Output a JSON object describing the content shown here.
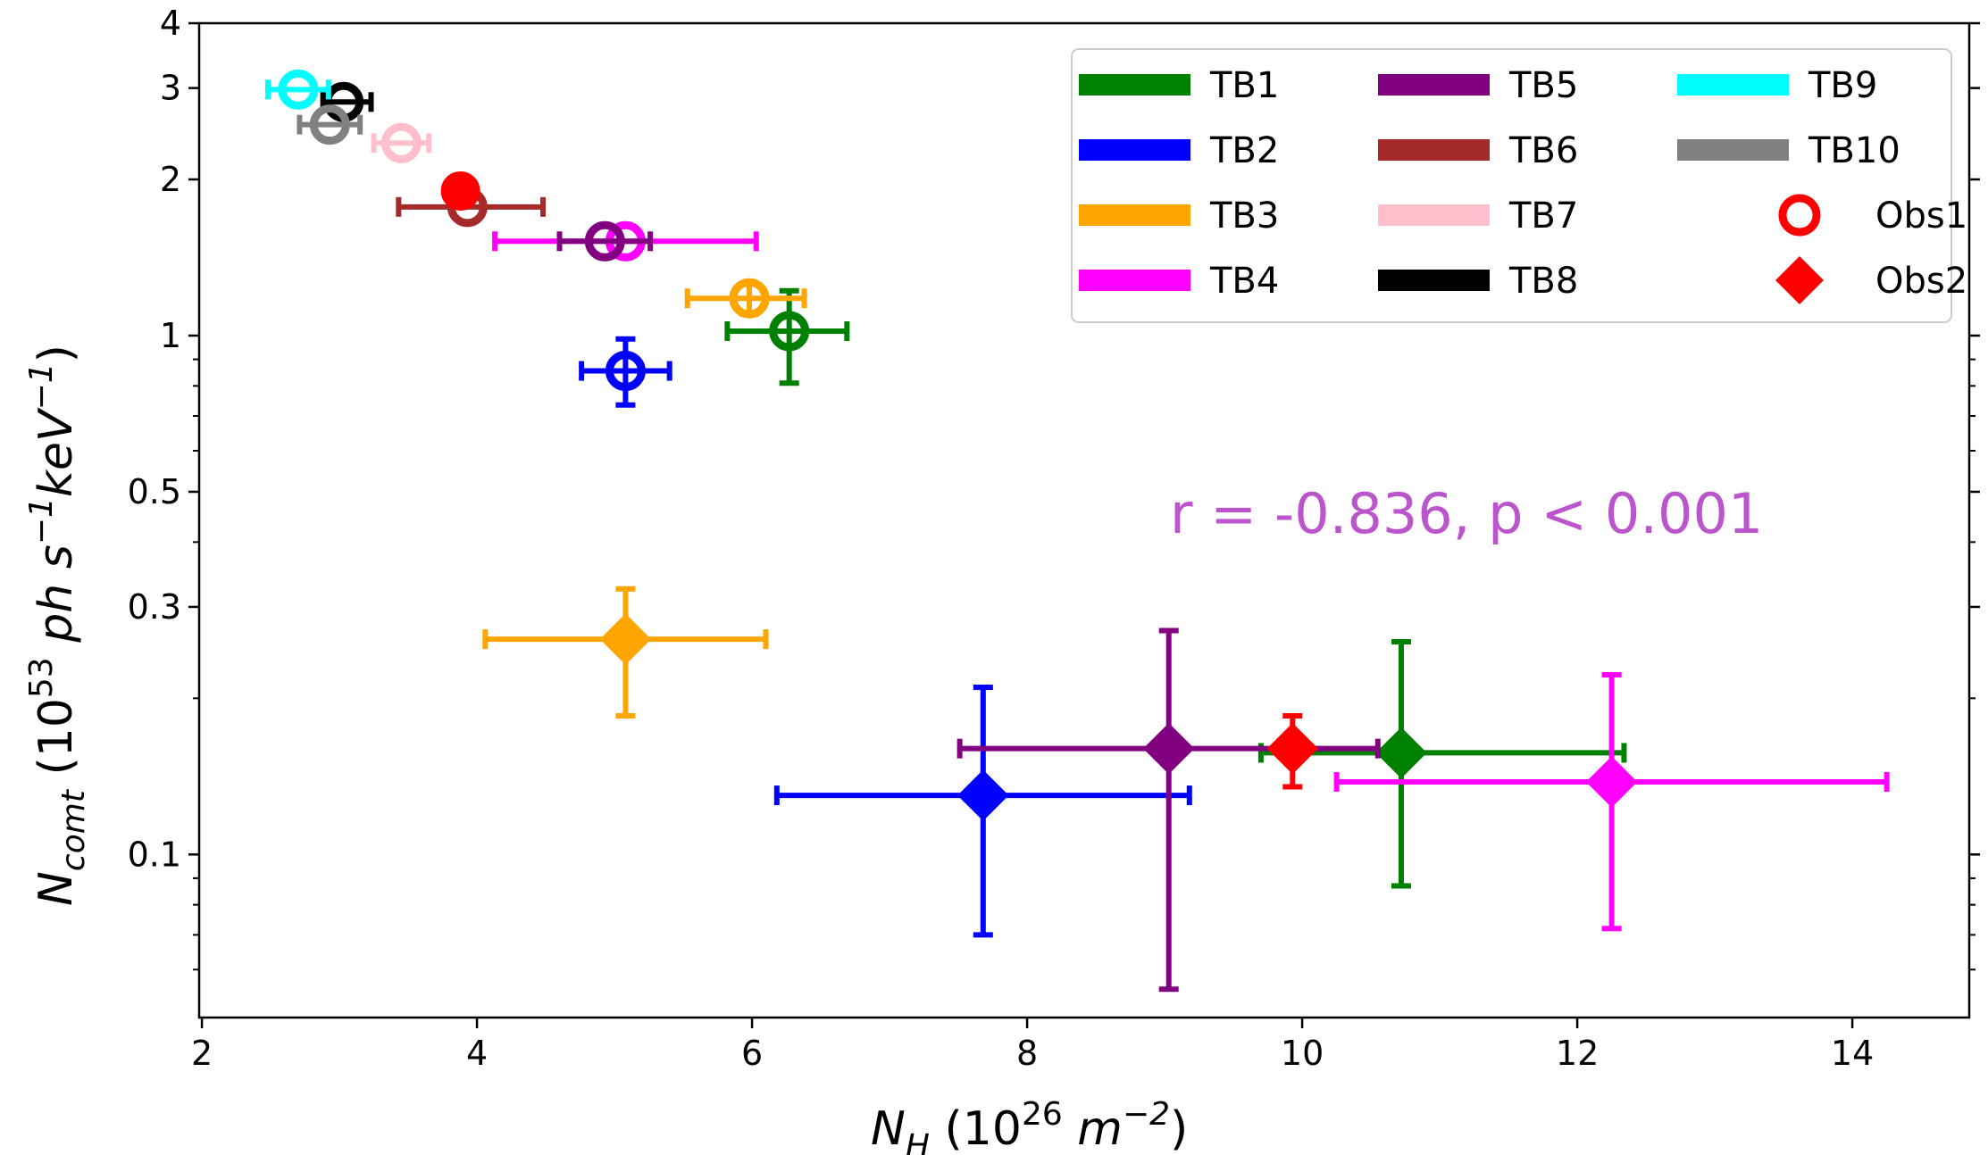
{
  "chart_data": {
    "type": "scatter",
    "x_axis": {
      "label_main": "N",
      "label_sub": "H",
      "label_rest": " (10",
      "label_sup": "26",
      "label_unit": " m",
      "label_unit_sup": "−2",
      "label_close": ")",
      "range": [
        1.98,
        14.85
      ],
      "ticks": [
        2,
        4,
        6,
        8,
        10,
        12,
        14
      ],
      "tick_labels": [
        "2",
        "4",
        "6",
        "8",
        "10",
        "12",
        "14"
      ]
    },
    "y_axis": {
      "scale": "log",
      "label_main": "N",
      "label_sub": "comt",
      "label_rest": " (10",
      "label_sup": "53",
      "label_unit1": " ph s",
      "label_unit1_sup": "−1",
      "label_unit2": "keV",
      "label_unit2_sup": "−1",
      "label_close": ")",
      "range": [
        0.0485,
        4.0
      ],
      "ticks": [
        0.1,
        0.3,
        0.5,
        1,
        2,
        3,
        4
      ],
      "tick_labels": [
        "0.1",
        "0.3",
        "0.5",
        "1",
        "2",
        "3",
        "4"
      ],
      "minor_ticks": [
        0.06,
        0.07,
        0.08,
        0.09,
        0.2,
        0.4,
        0.6,
        0.7,
        0.8,
        0.9
      ]
    },
    "annotation": {
      "text": "r = -0.836, p < 0.001",
      "color": "#bb55cc"
    },
    "legend": {
      "position": "top-right",
      "columns": 3,
      "items": [
        {
          "label": "TB1",
          "color": "#008000",
          "kind": "line"
        },
        {
          "label": "TB2",
          "color": "#0000ff",
          "kind": "line"
        },
        {
          "label": "TB3",
          "color": "#ffa500",
          "kind": "line"
        },
        {
          "label": "TB4",
          "color": "#ff00ff",
          "kind": "line"
        },
        {
          "label": "TB5",
          "color": "#800080",
          "kind": "line"
        },
        {
          "label": "TB6",
          "color": "#a52a2a",
          "kind": "line"
        },
        {
          "label": "TB7",
          "color": "#ffc0cb",
          "kind": "line"
        },
        {
          "label": "TB8",
          "color": "#000000",
          "kind": "line"
        },
        {
          "label": "TB9",
          "color": "#00ffff",
          "kind": "line"
        },
        {
          "label": "TB10",
          "color": "#808080",
          "kind": "line"
        },
        {
          "label": "Obs1",
          "color": "#ff0000",
          "kind": "circle"
        },
        {
          "label": "Obs2",
          "color": "#ff0000",
          "kind": "diamond"
        }
      ]
    },
    "series": [
      {
        "name": "Obs1",
        "marker": "circle",
        "points": [
          {
            "x": 6.27,
            "y": 1.02,
            "xerr": [
              0.45,
              0.42
            ],
            "yerr": [
              0.21,
              0.2
            ],
            "color": "#008000"
          },
          {
            "x": 5.08,
            "y": 0.855,
            "xerr": [
              0.32,
              0.32
            ],
            "yerr": [
              0.12,
              0.13
            ],
            "color": "#0000ff"
          },
          {
            "x": 5.98,
            "y": 1.18,
            "xerr": [
              0.45,
              0.4
            ],
            "yerr": [
              0.08,
              0.08
            ],
            "color": "#ffa500"
          },
          {
            "x": 5.08,
            "y": 1.52,
            "xerr": [
              0.95,
              0.95
            ],
            "yerr": [
              0.0,
              0.0
            ],
            "color": "#ff00ff"
          },
          {
            "x": 4.93,
            "y": 1.52,
            "xerr": [
              0.33,
              0.33
            ],
            "yerr": [
              0.0,
              0.0
            ],
            "color": "#800080"
          },
          {
            "x": 3.93,
            "y": 1.77,
            "xerr": [
              0.5,
              0.55
            ],
            "yerr": [
              0.0,
              0.0
            ],
            "color": "#a52a2a"
          },
          {
            "x": 3.45,
            "y": 2.35,
            "xerr": [
              0.2,
              0.2
            ],
            "yerr": [
              0.0,
              0.0
            ],
            "color": "#ffc0cb"
          },
          {
            "x": 3.03,
            "y": 2.82,
            "xerr": [
              0.15,
              0.2
            ],
            "yerr": [
              0.0,
              0.0
            ],
            "color": "#000000"
          },
          {
            "x": 2.7,
            "y": 2.98,
            "xerr": [
              0.22,
              0.22
            ],
            "yerr": [
              0.0,
              0.0
            ],
            "color": "#00ffff"
          },
          {
            "x": 2.93,
            "y": 2.55,
            "xerr": [
              0.22,
              0.22
            ],
            "yerr": [
              0.0,
              0.0
            ],
            "color": "#808080"
          },
          {
            "x": 3.88,
            "y": 1.9,
            "xerr": [
              0.0,
              0.0
            ],
            "yerr": [
              0.0,
              0.0
            ],
            "color": "#ff0000",
            "filled": true
          }
        ]
      },
      {
        "name": "Obs2",
        "marker": "diamond",
        "points": [
          {
            "x": 10.72,
            "y": 0.157,
            "xerr": [
              1.02,
              1.62
            ],
            "yerr": [
              0.07,
              0.1
            ],
            "color": "#008000"
          },
          {
            "x": 7.68,
            "y": 0.13,
            "xerr": [
              1.5,
              1.5
            ],
            "yerr": [
              0.06,
              0.08
            ],
            "color": "#0000ff"
          },
          {
            "x": 5.08,
            "y": 0.26,
            "xerr": [
              1.02,
              1.02
            ],
            "yerr": [
              0.075,
              0.065
            ],
            "color": "#ffa500"
          },
          {
            "x": 12.25,
            "y": 0.138,
            "xerr": [
              2.0,
              2.0
            ],
            "yerr": [
              0.066,
              0.084
            ],
            "color": "#ff00ff"
          },
          {
            "x": 9.03,
            "y": 0.16,
            "xerr": [
              1.52,
              1.52
            ],
            "yerr": [
              0.105,
              0.11
            ],
            "color": "#800080"
          },
          {
            "x": 9.93,
            "y": 0.16,
            "xerr": [
              0.0,
              0.0
            ],
            "yerr": [
              0.025,
              0.025
            ],
            "color": "#ff0000"
          }
        ]
      }
    ]
  }
}
